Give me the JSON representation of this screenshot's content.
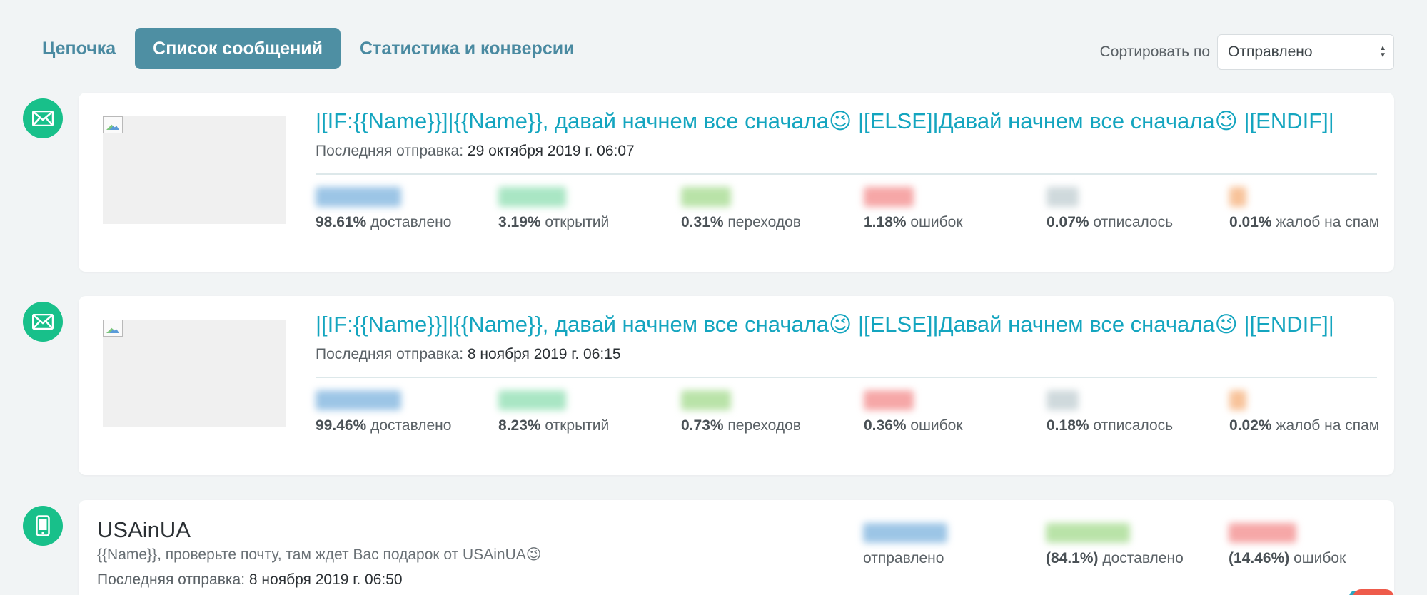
{
  "tabs": [
    {
      "label": "Цепочка",
      "active": false
    },
    {
      "label": "Список сообщений",
      "active": true
    },
    {
      "label": "Статистика и конверсии",
      "active": false
    }
  ],
  "sort": {
    "label": "Сортировать по",
    "selected": "Отправлено"
  },
  "colors": {
    "accent": "#4e8fa3",
    "title_link": "#14a5bf",
    "icon_green": "#18c08a",
    "blur_blue": "#9cc5e6",
    "blur_green": "#a9e6c4",
    "blur_lightgreen": "#b9e3a8",
    "blur_red": "#f6a7a7",
    "blur_gray": "#cfd9dc",
    "blur_orange": "#f8c39a"
  },
  "emails": [
    {
      "icon": "envelope-icon",
      "title": "|[IF:{{Name}}]|{{Name}}, давай начнем все сначала😉 |[ELSE]|Давай начнем все сначала😉 |[ENDIF]|",
      "last_sent_label": "Последняя отправка:",
      "last_sent": "29 октября 2019 г. 06:07",
      "stats": [
        {
          "pct": "98.61%",
          "label": "доставлено"
        },
        {
          "pct": "3.19%",
          "label": "открытий"
        },
        {
          "pct": "0.31%",
          "label": "переходов"
        },
        {
          "pct": "1.18%",
          "label": "ошибок"
        },
        {
          "pct": "0.07%",
          "label": "отписалось"
        },
        {
          "pct": "0.01%",
          "label": "жалоб на спам"
        }
      ]
    },
    {
      "icon": "envelope-icon",
      "title": "|[IF:{{Name}}]|{{Name}}, давай начнем все сначала😉 |[ELSE]|Давай начнем все сначала😉 |[ENDIF]|",
      "last_sent_label": "Последняя отправка:",
      "last_sent": "8 ноября 2019 г. 06:15",
      "stats": [
        {
          "pct": "99.46%",
          "label": "доставлено"
        },
        {
          "pct": "8.23%",
          "label": "открытий"
        },
        {
          "pct": "0.73%",
          "label": "переходов"
        },
        {
          "pct": "0.36%",
          "label": "ошибок"
        },
        {
          "pct": "0.18%",
          "label": "отписалось"
        },
        {
          "pct": "0.02%",
          "label": "жалоб на спам"
        }
      ]
    }
  ],
  "sms": {
    "icon": "phone-icon",
    "title": "USAinUA",
    "text": "{{Name}}, проверьте почту, там ждет Вас подарок от USAinUA😉",
    "last_sent_label": "Последняя отправка:",
    "last_sent": "8 ноября 2019 г. 06:50",
    "stats": [
      {
        "pct": "",
        "label": "отправлено"
      },
      {
        "pct": "(84.1%)",
        "label": "доставлено"
      },
      {
        "pct": "(14.46%)",
        "label": "ошибок"
      }
    ]
  }
}
